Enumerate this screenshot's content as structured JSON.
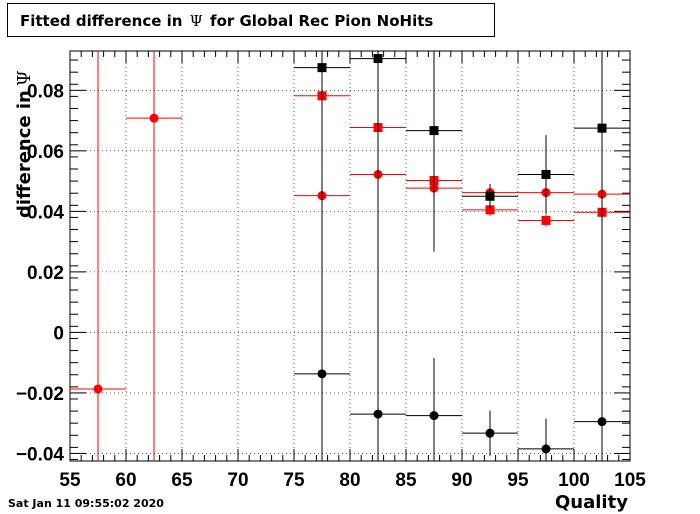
{
  "chart_data": {
    "type": "scatter",
    "title": "Fitted difference in",
    "title_symbol": "Ψ",
    "title_suffix": "for Global Rec Pion NoHits",
    "xlabel": "Quality",
    "ylabel": "difference in",
    "ylabel_symbol": "Ψ",
    "xlim": [
      55,
      105
    ],
    "ylim": [
      -0.0425,
      0.093
    ],
    "grid": true,
    "x_ticks": [
      55,
      60,
      65,
      70,
      75,
      80,
      85,
      90,
      95,
      100,
      105
    ],
    "y_ticks": [
      -0.04,
      -0.02,
      0,
      0.02,
      0.04,
      0.06,
      0.08
    ],
    "y_tick_labels": [
      "−0.04",
      "−0.02",
      "0",
      "0.02",
      "0.04",
      "0.06",
      "0.08"
    ],
    "bin_half_width": 2.5,
    "series": [
      {
        "marker": "circle",
        "color": "#ff0000",
        "points": [
          {
            "x": 57.5,
            "y": -0.0187,
            "err": 0.25
          },
          {
            "x": 62.5,
            "y": 0.0708,
            "err": 0.25
          },
          {
            "x": 77.5,
            "y": 0.0452,
            "err": 0.025
          },
          {
            "x": 82.5,
            "y": 0.0522,
            "err": 0.017
          },
          {
            "x": 87.5,
            "y": 0.0477,
            "err": 0.005
          },
          {
            "x": 92.5,
            "y": 0.0462,
            "err": 0.002
          },
          {
            "x": 97.5,
            "y": 0.0462,
            "err": 0.002
          },
          {
            "x": 102.5,
            "y": 0.0457,
            "err": 0.002
          }
        ]
      },
      {
        "marker": "square",
        "color": "#ff0000",
        "points": [
          {
            "x": 77.5,
            "y": 0.0782,
            "err": 0.05
          },
          {
            "x": 82.5,
            "y": 0.0677,
            "err": 0.015
          },
          {
            "x": 87.5,
            "y": 0.0502,
            "err": 0.004
          },
          {
            "x": 92.5,
            "y": 0.0405,
            "err": 0.002
          },
          {
            "x": 97.5,
            "y": 0.037,
            "err": 0.002
          },
          {
            "x": 102.5,
            "y": 0.0397,
            "err": 0.002
          }
        ]
      },
      {
        "marker": "circle",
        "color": "#000000",
        "points": [
          {
            "x": 77.5,
            "y": -0.0137,
            "err": 0.037
          },
          {
            "x": 82.5,
            "y": -0.027,
            "err": 0.1
          },
          {
            "x": 87.5,
            "y": -0.0275,
            "err": 0.019
          },
          {
            "x": 92.5,
            "y": -0.0333,
            "err": 0.0075
          },
          {
            "x": 97.5,
            "y": -0.0385,
            "err": 0.01
          },
          {
            "x": 102.5,
            "y": -0.0295,
            "err": 0.017
          }
        ]
      },
      {
        "marker": "square",
        "color": "#000000",
        "points": [
          {
            "x": 77.5,
            "y": 0.0875,
            "err": 0.1
          },
          {
            "x": 82.5,
            "y": 0.0905,
            "err": 0.1
          },
          {
            "x": 87.5,
            "y": 0.0667,
            "err": 0.04
          },
          {
            "x": 92.5,
            "y": 0.045,
            "err": 0.004
          },
          {
            "x": 97.5,
            "y": 0.0522,
            "err": 0.013
          },
          {
            "x": 102.5,
            "y": 0.0675,
            "err": 0.1
          }
        ]
      }
    ]
  },
  "footer": {
    "timestamp": "Sat Jan 11 09:55:02 2020"
  }
}
